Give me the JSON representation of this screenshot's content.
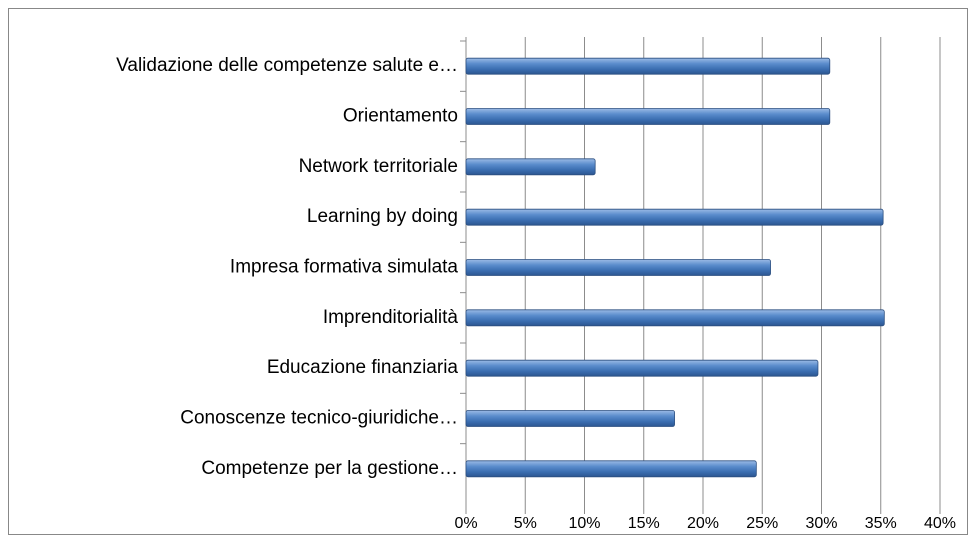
{
  "chart_data": {
    "type": "bar",
    "orientation": "horizontal",
    "categories": [
      "Validazione delle competenze salute e…",
      "Orientamento",
      "Network territoriale",
      "Learning by doing",
      "Impresa formativa simulata",
      "Imprenditorialità",
      "Educazione finanziaria",
      "Conoscenze tecnico-giuridiche…",
      "Competenze per la gestione…"
    ],
    "values": [
      30.7,
      30.7,
      10.9,
      35.2,
      25.7,
      35.3,
      29.7,
      17.6,
      24.5
    ],
    "color": "#4f81bd",
    "xlim": [
      0,
      40
    ],
    "xticks": [
      {
        "value": 0,
        "label": "0%"
      },
      {
        "value": 5,
        "label": "5%"
      },
      {
        "value": 10,
        "label": "10%"
      },
      {
        "value": 15,
        "label": "15%"
      },
      {
        "value": 20,
        "label": "20%"
      },
      {
        "value": 25,
        "label": "25%"
      },
      {
        "value": 30,
        "label": "30%"
      },
      {
        "value": 35,
        "label": "35%"
      },
      {
        "value": 40,
        "label": "40%"
      }
    ],
    "grid": true
  }
}
